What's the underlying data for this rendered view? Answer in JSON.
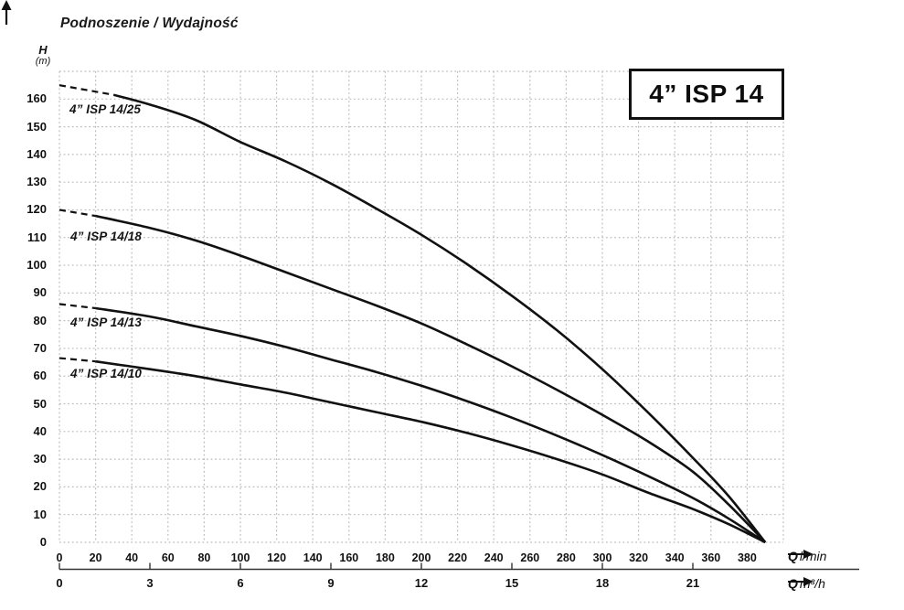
{
  "header": {
    "chart_title": "Podnoszenie / Wydajność"
  },
  "y_axis_unit": {
    "symbol": "H",
    "unit": "(m)"
  },
  "model_box_label": "4” ISP 14",
  "x_axis_units": {
    "lmin_symbol": "Q",
    "lmin_unit": "l/min",
    "m3h_symbol": "Q",
    "m3h_unit": "m³/h"
  },
  "colors": {
    "curve": "#111111",
    "grid": "#bcbcbc",
    "axis": "#333333",
    "text": "#111111",
    "background": "#ffffff"
  },
  "chart_data": {
    "type": "line",
    "title": "Podnoszenie / Wydajność",
    "legend": "inline-labels",
    "grid": true,
    "x_axis": {
      "label_primary": "Q l/min",
      "label_secondary": "Q m³/h",
      "range_lmin": [
        0,
        400
      ],
      "grid_step_lmin": 20,
      "ticks_lmin": [
        0,
        20,
        40,
        60,
        80,
        100,
        120,
        140,
        160,
        180,
        200,
        220,
        240,
        260,
        280,
        300,
        320,
        340,
        360,
        380
      ],
      "ticks_m3h": [
        0,
        3,
        6,
        9,
        12,
        15,
        18,
        21
      ],
      "lmin_per_3_m3h": 50
    },
    "y_axis": {
      "label": "H (m)",
      "range_m": [
        0,
        170
      ],
      "grid_step_m": 10,
      "ticks_m": [
        0,
        10,
        20,
        30,
        40,
        50,
        60,
        70,
        80,
        90,
        100,
        110,
        120,
        130,
        140,
        150,
        160
      ]
    },
    "convergence_point_q_h": [
      390,
      0
    ],
    "series": [
      {
        "id": "isp-14-25",
        "name": "4” ISP 14/25",
        "head_at_zero_flow_m": 165,
        "dashed_lead_in": true,
        "points_q_h": [
          [
            0,
            165
          ],
          [
            30,
            161.5
          ],
          [
            50,
            158
          ],
          [
            75,
            152.5
          ],
          [
            100,
            144.5
          ],
          [
            125,
            137.5
          ],
          [
            150,
            129.5
          ],
          [
            175,
            120.5
          ],
          [
            200,
            111
          ],
          [
            225,
            100.5
          ],
          [
            250,
            89
          ],
          [
            275,
            76.5
          ],
          [
            300,
            62.5
          ],
          [
            325,
            47
          ],
          [
            350,
            30.5
          ],
          [
            370,
            16.5
          ],
          [
            390,
            0
          ]
        ]
      },
      {
        "id": "isp-14-18",
        "name": "4” ISP 14/18",
        "head_at_zero_flow_m": 120,
        "dashed_lead_in": true,
        "points_q_h": [
          [
            0,
            120
          ],
          [
            20,
            117.8
          ],
          [
            50,
            113.5
          ],
          [
            75,
            109
          ],
          [
            100,
            103.5
          ],
          [
            125,
            97.5
          ],
          [
            150,
            91.5
          ],
          [
            175,
            85.5
          ],
          [
            200,
            79
          ],
          [
            225,
            71.5
          ],
          [
            250,
            63.5
          ],
          [
            275,
            55
          ],
          [
            300,
            46
          ],
          [
            325,
            36.5
          ],
          [
            350,
            25.5
          ],
          [
            370,
            13.5
          ],
          [
            390,
            0
          ]
        ]
      },
      {
        "id": "isp-14-13",
        "name": "4” ISP 14/13",
        "head_at_zero_flow_m": 86,
        "dashed_lead_in": true,
        "points_q_h": [
          [
            0,
            86
          ],
          [
            20,
            84.5
          ],
          [
            50,
            81.5
          ],
          [
            75,
            78
          ],
          [
            100,
            74.5
          ],
          [
            125,
            70.5
          ],
          [
            150,
            66
          ],
          [
            175,
            61.5
          ],
          [
            200,
            56.5
          ],
          [
            225,
            51
          ],
          [
            250,
            45
          ],
          [
            275,
            38.5
          ],
          [
            300,
            31.5
          ],
          [
            325,
            24
          ],
          [
            350,
            16
          ],
          [
            370,
            8.5
          ],
          [
            390,
            0
          ]
        ]
      },
      {
        "id": "isp-14-10",
        "name": "4” ISP 14/10",
        "head_at_zero_flow_m": 66.5,
        "dashed_lead_in": true,
        "points_q_h": [
          [
            0,
            66.5
          ],
          [
            20,
            65.3
          ],
          [
            50,
            62.5
          ],
          [
            75,
            60
          ],
          [
            100,
            57
          ],
          [
            125,
            54
          ],
          [
            150,
            50.5
          ],
          [
            175,
            47
          ],
          [
            200,
            43.5
          ],
          [
            225,
            39.5
          ],
          [
            250,
            35
          ],
          [
            275,
            30
          ],
          [
            300,
            24.5
          ],
          [
            325,
            18
          ],
          [
            350,
            12
          ],
          [
            370,
            6.5
          ],
          [
            390,
            0
          ]
        ]
      }
    ]
  }
}
